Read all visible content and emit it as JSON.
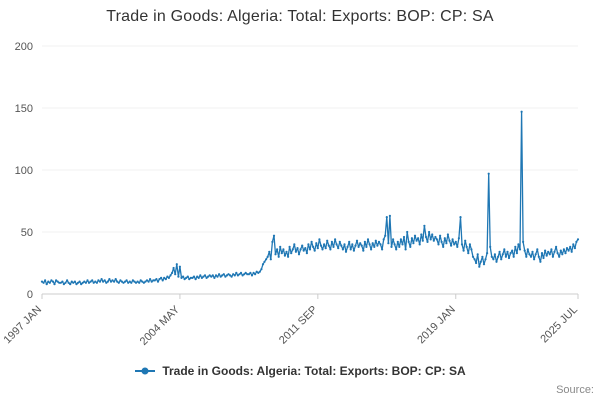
{
  "title": "Trade in Goods: Algeria: Total: Exports: BOP: CP: SA",
  "legend_label": "Trade in Goods: Algeria: Total: Exports: BOP: CP: SA",
  "source_label": "Source:",
  "chart_data": {
    "type": "line",
    "title": "Trade in Goods: Algeria: Total: Exports: BOP: CP: SA",
    "xlabel": "",
    "ylabel": "",
    "ylim": [
      0,
      200
    ],
    "y_ticks": [
      0,
      50,
      100,
      150,
      200
    ],
    "x_ticks": [
      {
        "label": "1997 JAN",
        "index": 0
      },
      {
        "label": "2004 MAY",
        "index": 88
      },
      {
        "label": "2011 SEP",
        "index": 176
      },
      {
        "label": "2019 JAN",
        "index": 264
      },
      {
        "label": "2025 JUL",
        "index": 342
      }
    ],
    "grid": "off",
    "legend_position": "bottom",
    "series": [
      {
        "name": "Trade in Goods: Algeria: Total: Exports: BOP: CP: SA",
        "color": "#1f77b4",
        "start": "1997-01",
        "end": "2025-07",
        "frequency": "monthly",
        "values": [
          10,
          9,
          11,
          8,
          10,
          9,
          11,
          10,
          8,
          11,
          10,
          9,
          9,
          10,
          8,
          9,
          11,
          9,
          8,
          10,
          9,
          10,
          8,
          9,
          10,
          8,
          9,
          10,
          9,
          11,
          9,
          10,
          11,
          9,
          10,
          9,
          11,
          10,
          12,
          10,
          11,
          9,
          10,
          12,
          10,
          11,
          10,
          12,
          10,
          9,
          11,
          10,
          9,
          10,
          11,
          9,
          10,
          9,
          11,
          10,
          9,
          10,
          9,
          11,
          10,
          9,
          10,
          11,
          10,
          12,
          10,
          11,
          11,
          12,
          10,
          12,
          13,
          11,
          13,
          12,
          14,
          13,
          15,
          17,
          21,
          16,
          24,
          14,
          22,
          13,
          14,
          12,
          13,
          14,
          12,
          13,
          13,
          14,
          12,
          14,
          13,
          15,
          13,
          14,
          15,
          13,
          14,
          15,
          14,
          15,
          13,
          15,
          14,
          16,
          14,
          15,
          16,
          14,
          15,
          16,
          15,
          14,
          16,
          15,
          17,
          15,
          16,
          17,
          15,
          16,
          17,
          16,
          16,
          17,
          15,
          17,
          16,
          18,
          17,
          18,
          20,
          24,
          26,
          28,
          30,
          34,
          28,
          42,
          47,
          32,
          36,
          30,
          38,
          33,
          36,
          31,
          34,
          30,
          38,
          33,
          36,
          40,
          34,
          37,
          32,
          36,
          39,
          35,
          37,
          33,
          40,
          36,
          42,
          38,
          35,
          41,
          37,
          44,
          39,
          36,
          40,
          37,
          43,
          39,
          36,
          42,
          38,
          44,
          40,
          37,
          42,
          39,
          36,
          40,
          34,
          38,
          42,
          36,
          40,
          35,
          39,
          43,
          38,
          41,
          39,
          35,
          42,
          38,
          44,
          40,
          36,
          41,
          38,
          43,
          39,
          42,
          40,
          36,
          44,
          47,
          62,
          41,
          63,
          38,
          44,
          40,
          36,
          42,
          38,
          44,
          40,
          46,
          36,
          50,
          42,
          38,
          45,
          41,
          47,
          43,
          45,
          40,
          48,
          43,
          55,
          46,
          42,
          50,
          44,
          48,
          43,
          46,
          44,
          40,
          47,
          42,
          38,
          45,
          41,
          48,
          43,
          39,
          44,
          40,
          42,
          38,
          45,
          62,
          40,
          35,
          43,
          38,
          33,
          40,
          36,
          30,
          28,
          25,
          32,
          22,
          26,
          30,
          24,
          28,
          33,
          97,
          38,
          30,
          28,
          32,
          26,
          30,
          34,
          28,
          32,
          36,
          30,
          34,
          29,
          33,
          35,
          30,
          38,
          33,
          40,
          36,
          147,
          42,
          35,
          30,
          36,
          32,
          30,
          34,
          28,
          32,
          36,
          30,
          26,
          33,
          29,
          35,
          31,
          34,
          32,
          36,
          30,
          34,
          38,
          33,
          30,
          35,
          32,
          36,
          33,
          37,
          35,
          38,
          34,
          40,
          37,
          42,
          44
        ]
      }
    ]
  }
}
